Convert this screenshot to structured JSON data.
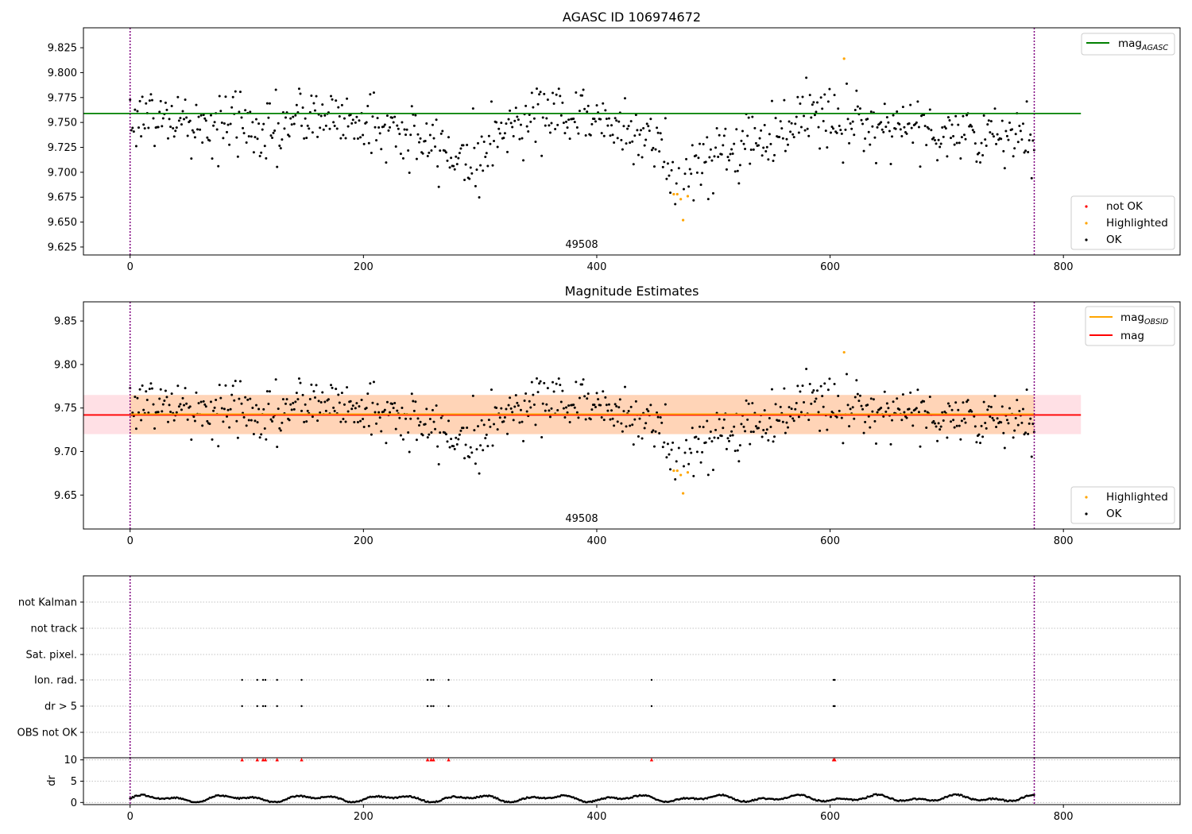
{
  "chart_data": [
    {
      "id": "panel1",
      "type": "scatter",
      "title": "AGASC ID 106974672",
      "xlim": [
        -40,
        900
      ],
      "ylim": [
        9.617,
        9.845
      ],
      "xticks": [
        0,
        200,
        400,
        600,
        800
      ],
      "xtick_labels": [
        "0",
        "200",
        "400",
        "600",
        "800"
      ],
      "yticks": [
        9.625,
        9.65,
        9.675,
        9.7,
        9.725,
        9.75,
        9.775,
        9.8,
        9.825
      ],
      "ytick_labels": [
        "9.625",
        "9.650",
        "9.675",
        "9.700",
        "9.725",
        "9.750",
        "9.775",
        "9.800",
        "9.825"
      ],
      "hline": {
        "label": "mag",
        "sub": "AGASC",
        "y": 9.759,
        "x": [
          -40,
          815
        ],
        "color": "#008000"
      },
      "vlines": [
        0,
        775
      ],
      "obsid_label": {
        "text": "49508",
        "x": 387,
        "y": 9.629
      },
      "legend_lines": [
        {
          "label": "mag",
          "sub": "AGASC",
          "color": "#008000"
        }
      ],
      "legend_markers": [
        {
          "label": "not OK",
          "color": "#ff0000"
        },
        {
          "label": "Highlighted",
          "color": "#ffa500"
        },
        {
          "label": "OK",
          "color": "#000000"
        }
      ],
      "highlighted": [
        [
          466,
          9.678
        ],
        [
          469,
          9.678
        ],
        [
          472,
          9.673
        ],
        [
          474,
          9.652
        ],
        [
          478,
          9.676
        ],
        [
          612,
          9.814
        ]
      ]
    },
    {
      "id": "panel2",
      "type": "scatter",
      "title": "Magnitude Estimates",
      "xlim": [
        -40,
        900
      ],
      "ylim": [
        9.611,
        9.872
      ],
      "xticks": [
        0,
        200,
        400,
        600,
        800
      ],
      "xtick_labels": [
        "0",
        "200",
        "400",
        "600",
        "800"
      ],
      "yticks": [
        9.65,
        9.7,
        9.75,
        9.8,
        9.85
      ],
      "ytick_labels": [
        "9.65",
        "9.70",
        "9.75",
        "9.80",
        "9.85"
      ],
      "mag": 9.742,
      "mag_band": [
        9.72,
        9.765
      ],
      "mag_obsid": 9.743,
      "obsid_band": [
        9.72,
        9.765
      ],
      "vlines": [
        0,
        775
      ],
      "obsid_label": {
        "text": "49508",
        "x": 387,
        "y": 9.615
      },
      "legend_lines": [
        {
          "label": "mag",
          "sub": "OBSID",
          "color": "#ffa500"
        },
        {
          "label": "mag",
          "sub": "",
          "color": "#ff0000"
        }
      ],
      "legend_markers": [
        {
          "label": "Highlighted",
          "color": "#ffa500"
        },
        {
          "label": "OK",
          "color": "#000000"
        }
      ],
      "highlighted": [
        [
          466,
          9.678
        ],
        [
          469,
          9.678
        ],
        [
          472,
          9.673
        ],
        [
          474,
          9.652
        ],
        [
          478,
          9.676
        ],
        [
          612,
          9.814
        ]
      ]
    },
    {
      "id": "panel3",
      "type": "scatter",
      "title": "",
      "xlim": [
        -40,
        900
      ],
      "categories": [
        "not Kalman",
        "not track",
        "Sat. pixel.",
        "Ion. rad.",
        "dr > 5",
        "OBS not OK"
      ],
      "flag_events": {
        "Ion. rad.": [
          96,
          109,
          114,
          116,
          126,
          147,
          255,
          258,
          260,
          273,
          447,
          603,
          604
        ],
        "dr > 5": [
          96,
          109,
          114,
          116,
          126,
          147,
          255,
          258,
          260,
          273,
          447,
          603,
          604
        ]
      },
      "vlines": [
        0,
        775
      ]
    },
    {
      "id": "panel4",
      "type": "line",
      "xlim": [
        -40,
        900
      ],
      "ylim": [
        -0.5,
        10.5
      ],
      "ylabel": "dr",
      "xticks": [
        0,
        200,
        400,
        600,
        800
      ],
      "xtick_labels": [
        "0",
        "200",
        "400",
        "600",
        "800"
      ],
      "yticks": [
        0,
        5,
        10
      ],
      "ytick_labels": [
        "0",
        "5",
        "10"
      ],
      "dr_clip": 10,
      "flagged_x": [
        96,
        109,
        114,
        116,
        126,
        147,
        255,
        258,
        260,
        273,
        447,
        603,
        604
      ],
      "vlines": [
        0,
        775
      ]
    }
  ]
}
